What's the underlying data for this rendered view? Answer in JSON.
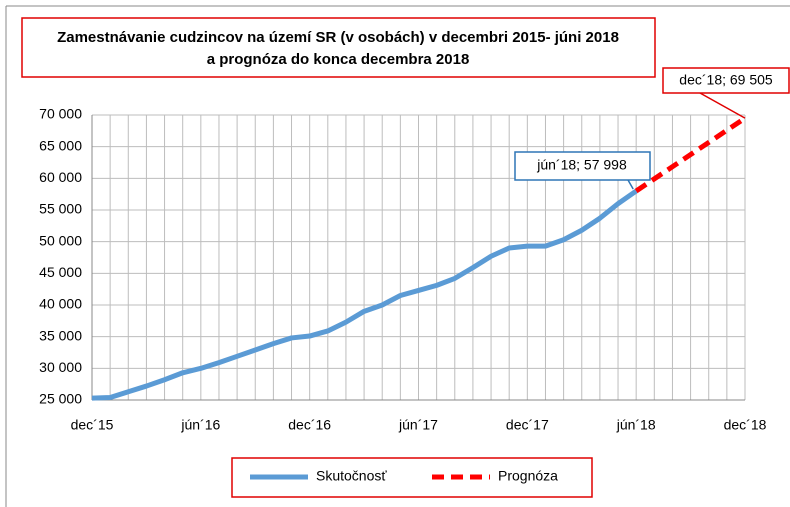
{
  "chart_data": {
    "type": "line",
    "title": [
      "Zamestnávanie cudzincov na území SR (v osobách) v decembri 2015- júni 2018",
      "a prognóza do konca decembra 2018"
    ],
    "categories": [
      "dec´15",
      null,
      null,
      null,
      null,
      null,
      "jún´16",
      null,
      null,
      null,
      null,
      null,
      "dec´16",
      null,
      null,
      null,
      null,
      null,
      "jún´17",
      null,
      null,
      null,
      null,
      null,
      "dec´17",
      null,
      null,
      null,
      null,
      null,
      "jún´18",
      null,
      null,
      null,
      null,
      null,
      "dec´18"
    ],
    "series": [
      {
        "name": "Skutočnosť",
        "color": "#5b9bd5",
        "dash": false,
        "values": [
          25300,
          25400,
          26300,
          27200,
          28200,
          29300,
          30000,
          30900,
          31900,
          32900,
          33900,
          34800,
          35100,
          35900,
          37300,
          39000,
          40000,
          41500,
          42300,
          43100,
          44200,
          45900,
          47700,
          49000,
          49300,
          49300,
          50300,
          51800,
          53700,
          56000,
          57998,
          null,
          null,
          null,
          null,
          null,
          null
        ],
        "value_labels": [
          null,
          null,
          null,
          null,
          null,
          null,
          null,
          null,
          null,
          null,
          null,
          null,
          null,
          null,
          null,
          null,
          null,
          null,
          null,
          null,
          null,
          null,
          null,
          null,
          null,
          null,
          null,
          null,
          null,
          null,
          "jún´18; 57 998",
          null,
          null,
          null,
          null,
          null,
          null
        ]
      },
      {
        "name": "Prognóza",
        "color": "#ff0000",
        "dash": true,
        "values": [
          null,
          null,
          null,
          null,
          null,
          null,
          null,
          null,
          null,
          null,
          null,
          null,
          null,
          null,
          null,
          null,
          null,
          null,
          null,
          null,
          null,
          null,
          null,
          null,
          null,
          null,
          null,
          null,
          null,
          null,
          57998,
          59916,
          61834,
          63752,
          65669,
          67587,
          69505
        ],
        "value_labels": [
          null,
          null,
          null,
          null,
          null,
          null,
          null,
          null,
          null,
          null,
          null,
          null,
          null,
          null,
          null,
          null,
          null,
          null,
          null,
          null,
          null,
          null,
          null,
          null,
          null,
          null,
          null,
          null,
          null,
          null,
          null,
          null,
          null,
          null,
          null,
          null,
          "dec´18; 69 505"
        ]
      }
    ],
    "ylim": [
      25000,
      70000
    ],
    "yticks": [
      {
        "value": 25000,
        "label": "25 000"
      },
      {
        "value": 30000,
        "label": "30 000"
      },
      {
        "value": 35000,
        "label": "35 000"
      },
      {
        "value": 40000,
        "label": "40 000"
      },
      {
        "value": 45000,
        "label": "45 000"
      },
      {
        "value": 50000,
        "label": "50 000"
      },
      {
        "value": 55000,
        "label": "55 000"
      },
      {
        "value": 60000,
        "label": "60 000"
      },
      {
        "value": 65000,
        "label": "65 000"
      },
      {
        "value": 70000,
        "label": "70 000"
      }
    ],
    "grid": true,
    "legend": "bottom"
  }
}
